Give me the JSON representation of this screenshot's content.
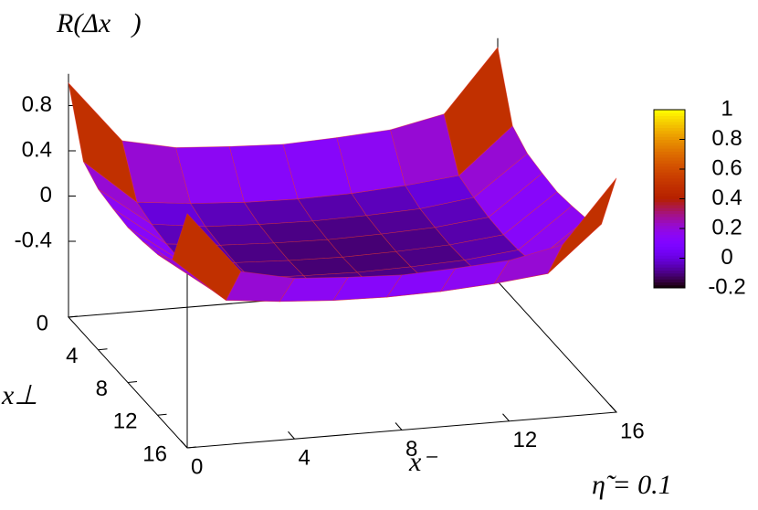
{
  "chart_data": {
    "type": "surface",
    "title": "R(Δx⃗)",
    "x_label": "x⁻",
    "y_label": "x⊥",
    "annotation": "η̃ = 0.1",
    "x": [
      0,
      2,
      4,
      6,
      8,
      10,
      12,
      14,
      16
    ],
    "y": [
      0,
      2,
      4,
      6,
      8,
      10,
      12,
      14,
      16
    ],
    "z": [
      [
        1.0,
        0.45,
        0.35,
        0.32,
        0.3,
        0.32,
        0.35,
        0.45,
        1.0
      ],
      [
        0.45,
        0.05,
        0,
        -0.03,
        -0.04,
        -0.03,
        0,
        0.05,
        0.45
      ],
      [
        0.35,
        0,
        -0.06,
        -0.08,
        -0.09,
        -0.08,
        -0.06,
        0,
        0.35
      ],
      [
        0.32,
        -0.03,
        -0.08,
        -0.1,
        -0.11,
        -0.1,
        -0.08,
        -0.03,
        0.32
      ],
      [
        0.3,
        -0.04,
        -0.09,
        -0.11,
        -0.12,
        -0.11,
        -0.09,
        -0.04,
        0.3
      ],
      [
        0.32,
        -0.03,
        -0.08,
        -0.1,
        -0.11,
        -0.1,
        -0.08,
        -0.03,
        0.32
      ],
      [
        0.35,
        0,
        -0.06,
        -0.08,
        -0.09,
        -0.08,
        -0.06,
        0,
        0.35
      ],
      [
        0.45,
        0.05,
        0,
        -0.03,
        -0.04,
        -0.03,
        0,
        0.05,
        0.45
      ],
      [
        1.0,
        0.45,
        0.35,
        0.32,
        0.3,
        0.32,
        0.35,
        0.45,
        1.0
      ]
    ],
    "xlim": [
      0,
      16
    ],
    "xticks": [
      0,
      4,
      8,
      12,
      16
    ],
    "ylim": [
      0,
      16
    ],
    "yticks": [
      0,
      4,
      8,
      12,
      16
    ],
    "zlim": [
      -0.4,
      1
    ],
    "zticks": [
      0.8,
      0.4,
      0,
      -0.4
    ],
    "cblim": [
      -0.2,
      1
    ],
    "cbticks": [
      1,
      0.8,
      0.6,
      0.4,
      0.2,
      0,
      -0.2
    ],
    "palette": "rgbformulae-7-5-15",
    "grid_color": "#e8302a"
  }
}
